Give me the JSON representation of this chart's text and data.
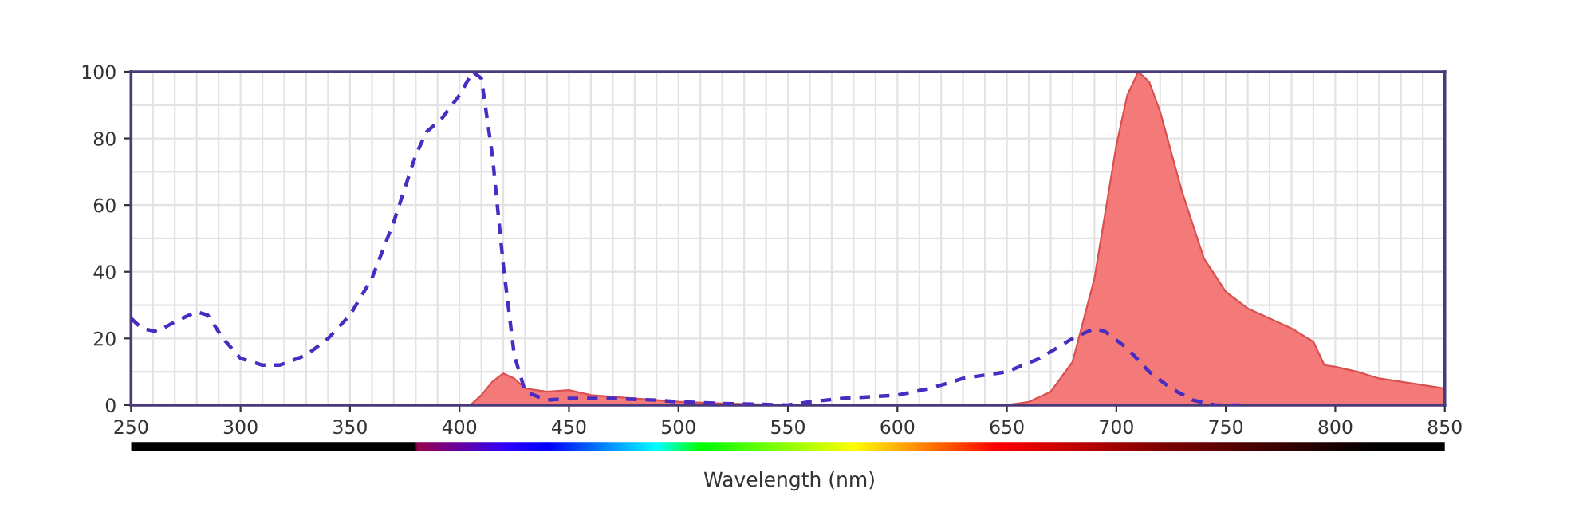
{
  "chart_data": {
    "type": "line",
    "xlabel": "Wavelength (nm)",
    "xlim": [
      250,
      850
    ],
    "ylim": [
      0,
      100
    ],
    "xticks": [
      250,
      300,
      350,
      400,
      450,
      500,
      550,
      600,
      650,
      700,
      750,
      800,
      850
    ],
    "yticks": [
      0,
      20,
      40,
      60,
      80,
      100
    ],
    "grid": true,
    "legend": false,
    "series": [
      {
        "line_style": "dashed",
        "color": "#4a2cc0",
        "x": [
          250,
          255,
          262,
          270,
          280,
          285,
          292,
          300,
          310,
          318,
          330,
          340,
          350,
          360,
          370,
          380,
          385,
          392,
          400,
          406,
          410,
          415,
          420,
          425,
          430,
          440,
          450,
          470,
          490,
          500,
          520,
          550,
          560,
          575,
          600,
          615,
          630,
          650,
          665,
          680,
          690,
          695,
          705,
          715,
          725,
          735,
          745,
          760
        ],
        "values": [
          26,
          23,
          22,
          25,
          28,
          27,
          20,
          14,
          12,
          12,
          15,
          20,
          27,
          38,
          55,
          75,
          82,
          86,
          93,
          100,
          98,
          75,
          42,
          15,
          4,
          1.5,
          2,
          2,
          1.5,
          1,
          0.5,
          0,
          1,
          2,
          3,
          5,
          8,
          10,
          14,
          20,
          23,
          22,
          17,
          10,
          5,
          1.5,
          0,
          0
        ]
      },
      {
        "type": "area",
        "color": "#f47a7a",
        "x": [
          405,
          410,
          415,
          420,
          425,
          430,
          440,
          450,
          460,
          480,
          500,
          520,
          550,
          650,
          660,
          670,
          680,
          690,
          700,
          705,
          710,
          715,
          720,
          730,
          740,
          750,
          760,
          770,
          780,
          790,
          795,
          800,
          810,
          820,
          830,
          840,
          850
        ],
        "values": [
          0,
          3,
          7,
          9.5,
          8,
          5,
          4,
          4.5,
          3,
          2,
          1,
          0.5,
          0,
          0,
          1,
          4,
          13,
          38,
          78,
          93,
          100,
          97,
          88,
          64,
          44,
          34,
          29,
          26,
          23,
          19,
          12,
          11.5,
          10,
          8,
          7,
          6,
          5
        ]
      }
    ]
  }
}
